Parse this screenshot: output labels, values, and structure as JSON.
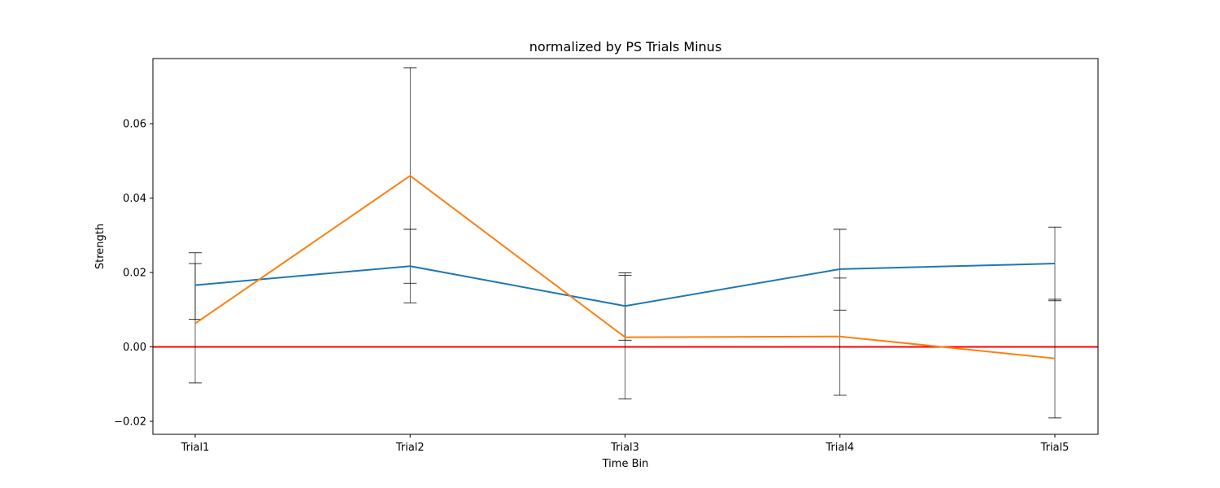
{
  "chart_data": {
    "type": "line",
    "title": "normalized by PS Trials Minus",
    "xlabel": "Time Bin",
    "ylabel": "Strength",
    "categories": [
      "Trial1",
      "Trial2",
      "Trial3",
      "Trial4",
      "Trial5"
    ],
    "ylim": [
      -0.0235,
      0.0775
    ],
    "yticks": [
      -0.02,
      0.0,
      0.02,
      0.04,
      0.06
    ],
    "ytick_labels": [
      "−0.02",
      "0.00",
      "0.02",
      "0.04",
      "0.06"
    ],
    "grid": false,
    "reference_line": {
      "y": 0.0,
      "color": "#ff0000"
    },
    "series": [
      {
        "color": "#1f77b4",
        "values": [
          0.0166,
          0.0217,
          0.011,
          0.0209,
          0.0224
        ],
        "err_low": [
          0.0074,
          0.0118,
          0.0018,
          0.0099,
          0.0124
        ],
        "err_high": [
          0.0253,
          0.0316,
          0.0199,
          0.0316,
          0.0322
        ]
      },
      {
        "color": "#ff7f0e",
        "values": [
          0.0063,
          0.046,
          0.0026,
          0.0028,
          -0.0031
        ],
        "err_low": [
          -0.0097,
          0.0171,
          -0.014,
          -0.013,
          -0.0191
        ],
        "err_high": [
          0.0224,
          0.075,
          0.0192,
          0.0185,
          0.0128
        ]
      }
    ]
  }
}
